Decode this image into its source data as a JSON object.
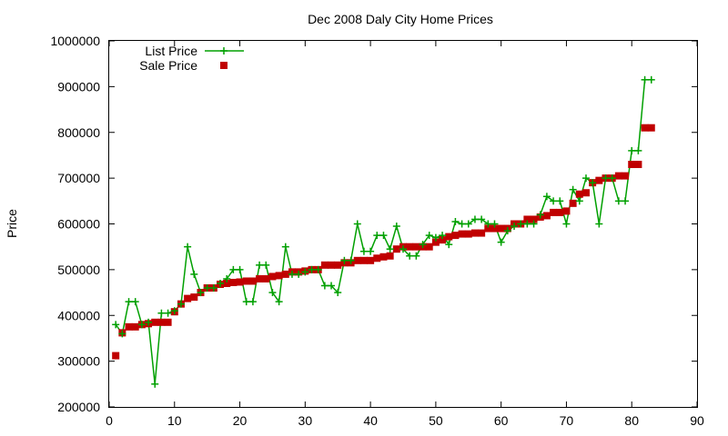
{
  "chart_data": {
    "type": "line",
    "title": "Dec 2008 Daly City Home Prices",
    "xlabel": "",
    "ylabel": "Price",
    "xlim": [
      0,
      90
    ],
    "ylim": [
      200000,
      1000000
    ],
    "x_ticks": [
      "0",
      "10",
      "20",
      "30",
      "40",
      "50",
      "60",
      "70",
      "80",
      "90"
    ],
    "y_ticks": [
      "200000",
      "300000",
      "400000",
      "500000",
      "600000",
      "700000",
      "800000",
      "900000",
      "1000000"
    ],
    "grid": false,
    "legend_position": "top-left",
    "x": [
      1,
      2,
      3,
      4,
      5,
      6,
      7,
      8,
      9,
      10,
      11,
      12,
      13,
      14,
      15,
      16,
      17,
      18,
      19,
      20,
      21,
      22,
      23,
      24,
      25,
      26,
      27,
      28,
      29,
      30,
      31,
      32,
      33,
      34,
      35,
      36,
      37,
      38,
      39,
      40,
      41,
      42,
      43,
      44,
      45,
      46,
      47,
      48,
      49,
      50,
      51,
      52,
      53,
      54,
      55,
      56,
      57,
      58,
      59,
      60,
      61,
      62,
      63,
      64,
      65,
      66,
      67,
      68,
      69,
      70,
      71,
      72,
      73,
      74,
      75,
      76,
      77,
      78,
      79,
      80,
      81,
      82,
      83
    ],
    "series": [
      {
        "name": "List Price",
        "style": "line-points",
        "color": "#00a000",
        "values": [
          380000,
          360000,
          430000,
          430000,
          380000,
          385000,
          250000,
          405000,
          405000,
          410000,
          425000,
          550000,
          490000,
          450000,
          460000,
          460000,
          470000,
          480000,
          500000,
          500000,
          430000,
          430000,
          510000,
          510000,
          450000,
          430000,
          550000,
          490000,
          490000,
          495000,
          500000,
          500000,
          465000,
          465000,
          450000,
          520000,
          520000,
          600000,
          540000,
          540000,
          575000,
          575000,
          545000,
          595000,
          545000,
          530000,
          530000,
          555000,
          575000,
          570000,
          575000,
          555000,
          605000,
          600000,
          600000,
          610000,
          610000,
          600000,
          600000,
          560000,
          585000,
          595000,
          600000,
          600000,
          600000,
          620000,
          660000,
          650000,
          650000,
          600000,
          675000,
          650000,
          700000,
          690000,
          600000,
          700000,
          700000,
          650000,
          650000,
          760000,
          760000,
          915000,
          915000
        ]
      },
      {
        "name": "Sale Price",
        "style": "points",
        "color": "#c00000",
        "values": [
          312000,
          362000,
          375000,
          375000,
          380000,
          382000,
          385000,
          385000,
          385000,
          408000,
          425000,
          437000,
          440000,
          450000,
          460000,
          460000,
          468000,
          470000,
          472000,
          473000,
          475000,
          475000,
          480000,
          480000,
          485000,
          487000,
          490000,
          495000,
          495000,
          497000,
          500000,
          500000,
          510000,
          510000,
          510000,
          515000,
          515000,
          520000,
          520000,
          520000,
          525000,
          528000,
          530000,
          545000,
          550000,
          550000,
          550000,
          550000,
          550000,
          560000,
          565000,
          572000,
          575000,
          578000,
          578000,
          580000,
          580000,
          590000,
          590000,
          590000,
          590000,
          600000,
          600000,
          610000,
          610000,
          615000,
          618000,
          625000,
          625000,
          628000,
          645000,
          665000,
          668000,
          690000,
          695000,
          700000,
          700000,
          705000,
          705000,
          730000,
          730000,
          810000,
          810000
        ]
      }
    ]
  }
}
